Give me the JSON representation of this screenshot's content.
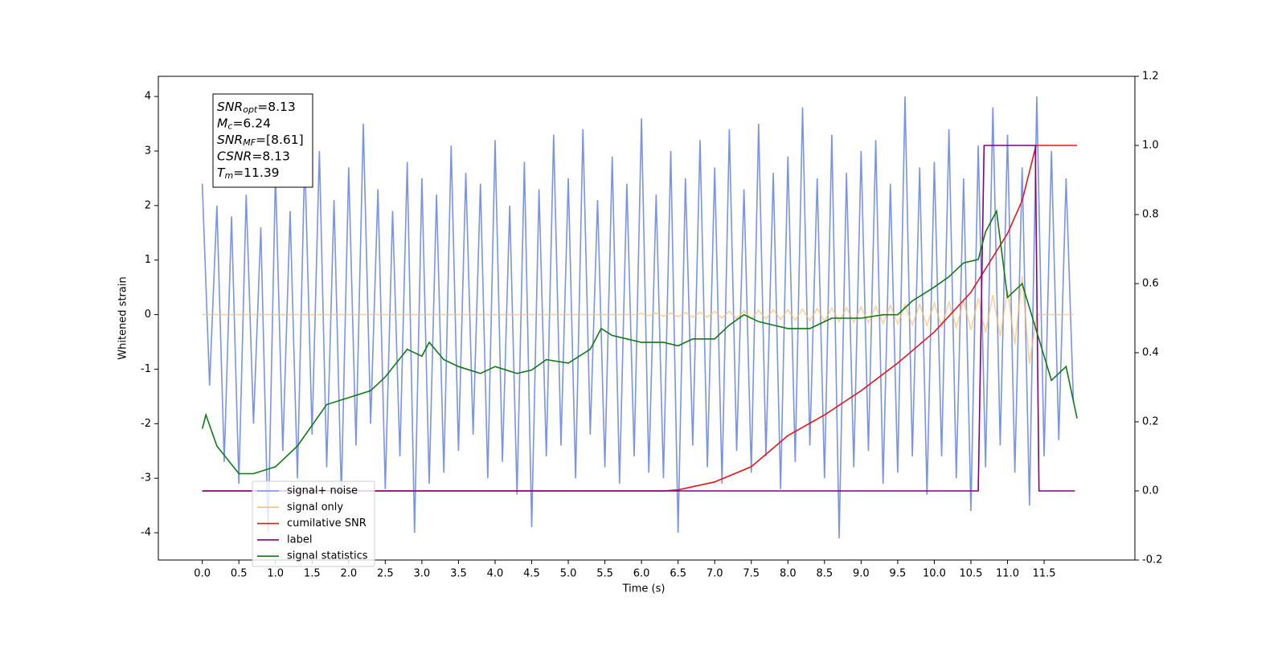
{
  "chart_data": {
    "type": "line",
    "xlabel": "Time (s)",
    "ylabel": "Whitened strain",
    "xlim": [
      -0.6,
      12.74
    ],
    "ylim": [
      -4.5,
      4.37
    ],
    "y2lim": [
      -0.2,
      1.2
    ],
    "xticks": [
      {
        "value": 0,
        "label": "0.0"
      },
      0.5,
      {
        "value": 1,
        "label": "1.0"
      },
      1.5,
      {
        "value": 2,
        "label": "2.0"
      },
      2.5,
      {
        "value": 3,
        "label": "3.0"
      },
      3.5,
      {
        "value": 4,
        "label": "4.0"
      },
      4.5,
      {
        "value": 5,
        "label": "5.0"
      },
      5.5,
      {
        "value": 6,
        "label": "6.0"
      },
      6.5,
      {
        "value": 7,
        "label": "7.0"
      },
      7.5,
      {
        "value": 8,
        "label": "8.0"
      },
      8.5,
      {
        "value": 9,
        "label": "9.0"
      },
      9.5,
      {
        "value": 10,
        "label": "10.0"
      },
      10.5,
      {
        "value": 11,
        "label": "11.0"
      },
      11.5
    ],
    "yticks": [
      -4,
      -3,
      -2,
      -1,
      0,
      1,
      2,
      3,
      4
    ],
    "y2ticks": [
      -0.2,
      {
        "value": 0,
        "label": "0.0"
      },
      0.2,
      0.4,
      0.6,
      0.8,
      {
        "value": 1,
        "label": "1.0"
      },
      1.2
    ],
    "annotations": [
      {
        "text": "SNR",
        "sub": "opt",
        "rest": "=8.13"
      },
      {
        "text": "M",
        "sub": "c",
        "rest": "=6.24"
      },
      {
        "text": "SNR",
        "sub": "MF",
        "rest": "=[8.61]"
      },
      {
        "text": "CSNR",
        "rest": "=8.13"
      },
      {
        "text": "T",
        "sub": "m",
        "rest": "=11.39"
      }
    ],
    "x": [
      0,
      0.1,
      0.2,
      0.3,
      0.4,
      0.5,
      0.6,
      0.7,
      0.8,
      0.9,
      1,
      1.1,
      1.2,
      1.3,
      1.4,
      1.5,
      1.6,
      1.7,
      1.8,
      1.9,
      2,
      2.1,
      2.2,
      2.3,
      2.4,
      2.5,
      2.6,
      2.7,
      2.8,
      2.9,
      3,
      3.1,
      3.2,
      3.3,
      3.4,
      3.5,
      3.6,
      3.7,
      3.8,
      3.9,
      4,
      4.1,
      4.2,
      4.3,
      4.4,
      4.5,
      4.6,
      4.7,
      4.8,
      4.9,
      5,
      5.1,
      5.2,
      5.3,
      5.4,
      5.5,
      5.6,
      5.7,
      5.8,
      5.9,
      6,
      6.1,
      6.2,
      6.3,
      6.4,
      6.5,
      6.6,
      6.7,
      6.8,
      6.9,
      7,
      7.1,
      7.2,
      7.3,
      7.4,
      7.5,
      7.6,
      7.7,
      7.8,
      7.9,
      8,
      8.1,
      8.2,
      8.3,
      8.4,
      8.5,
      8.6,
      8.7,
      8.8,
      8.9,
      9,
      9.1,
      9.2,
      9.3,
      9.4,
      9.5,
      9.6,
      9.7,
      9.8,
      9.9,
      10,
      10.1,
      10.2,
      10.3,
      10.4,
      10.5,
      10.6,
      10.7,
      10.8,
      10.9,
      11,
      11.1,
      11.2,
      11.3,
      11.4,
      11.5,
      11.6,
      11.7,
      11.8,
      11.9
    ],
    "series": [
      {
        "name": "signal+ noise",
        "color": "#7893e8",
        "values": [
          2.4,
          -1.3,
          2.0,
          -2.7,
          1.8,
          -3.1,
          2.2,
          -2.0,
          1.6,
          -4.0,
          2.6,
          -2.5,
          1.9,
          -3.0,
          2.9,
          -2.2,
          3.0,
          -2.8,
          2.1,
          -3.3,
          2.7,
          -2.4,
          3.5,
          -2.0,
          2.3,
          -3.2,
          1.9,
          -2.6,
          2.8,
          -4.0,
          2.5,
          -3.1,
          2.2,
          -2.9,
          3.1,
          -2.5,
          2.6,
          -2.2,
          2.4,
          -3.0,
          3.2,
          -2.7,
          2.0,
          -3.3,
          2.8,
          -3.9,
          2.3,
          -2.6,
          3.3,
          -2.4,
          2.5,
          -3.0,
          3.4,
          -2.2,
          2.1,
          -2.8,
          2.9,
          -3.1,
          2.4,
          -2.6,
          3.6,
          -2.9,
          2.2,
          -3.0,
          3.0,
          -4.0,
          2.5,
          -2.4,
          3.2,
          -2.8,
          2.7,
          -3.1,
          3.4,
          -2.5,
          2.3,
          -2.9,
          3.5,
          -2.6,
          2.6,
          -3.2,
          2.9,
          -2.7,
          3.8,
          -2.4,
          2.5,
          -3.0,
          3.3,
          -4.1,
          2.6,
          -2.8,
          3.0,
          -2.5,
          3.2,
          -3.1,
          2.4,
          -2.9,
          4.0,
          -2.6,
          2.7,
          -3.3,
          2.8,
          -2.6,
          3.4,
          -3.0,
          2.5,
          -3.6,
          3.1,
          -2.8,
          3.8,
          -2.4,
          3.3,
          -2.9,
          2.7,
          -3.5,
          4.0,
          -2.6,
          3.0,
          -2.3,
          2.5,
          -1.6
        ]
      },
      {
        "name": "signal only",
        "color": "#ffbf60",
        "values": [
          0,
          0,
          0,
          0,
          0,
          0,
          0,
          0,
          0,
          0,
          0,
          0,
          0,
          0,
          0,
          0,
          0,
          0,
          0,
          0,
          0,
          0,
          0,
          0,
          0,
          0,
          0,
          0,
          0,
          0,
          0,
          0,
          0,
          0,
          0,
          0,
          0,
          0,
          0,
          0,
          0,
          0,
          0,
          0,
          0,
          0,
          0,
          0,
          0,
          0,
          0,
          0,
          0,
          0,
          0,
          0,
          0,
          0,
          0,
          0,
          0.02,
          -0.02,
          0.03,
          -0.03,
          0.03,
          -0.04,
          0.04,
          -0.05,
          0.05,
          -0.05,
          0.06,
          -0.06,
          0.06,
          -0.07,
          0.07,
          -0.08,
          0.08,
          -0.08,
          0.09,
          -0.09,
          0.09,
          -0.1,
          0.1,
          -0.11,
          0.11,
          -0.12,
          0.12,
          -0.13,
          0.13,
          -0.14,
          0.14,
          -0.15,
          0.15,
          -0.16,
          0.17,
          -0.17,
          0.18,
          -0.19,
          0.19,
          -0.2,
          0.21,
          -0.22,
          0.23,
          -0.24,
          0.26,
          -0.28,
          0.3,
          -0.33,
          0.36,
          -0.4,
          0.45,
          -0.55,
          0.7,
          -0.9,
          0,
          0,
          0,
          0,
          0,
          0
        ]
      },
      {
        "name": "cumilative SNR",
        "color": "#e8151b",
        "axis": "y2",
        "x": [
          0,
          6.3,
          6.5,
          7,
          7.5,
          8,
          8.5,
          9,
          9.5,
          10,
          10.5,
          11,
          11.2,
          11.39,
          11.95
        ],
        "values": [
          0,
          0,
          0.003,
          0.026,
          0.07,
          0.16,
          0.22,
          0.29,
          0.37,
          0.46,
          0.575,
          0.745,
          0.84,
          1,
          1
        ]
      },
      {
        "name": "label",
        "color": "#800080",
        "axis": "y2",
        "x": [
          0,
          10.6,
          10.68,
          11.38,
          11.43,
          11.92
        ],
        "values": [
          0,
          0,
          1,
          1,
          0,
          0
        ]
      },
      {
        "name": "signal statistics",
        "color": "#117a11",
        "axis": "y2",
        "x": [
          0,
          0.05,
          0.2,
          0.5,
          0.7,
          1,
          1.3,
          1.5,
          1.7,
          2,
          2.3,
          2.5,
          2.8,
          3,
          3.1,
          3.3,
          3.5,
          3.8,
          4,
          4.3,
          4.5,
          4.7,
          5,
          5.3,
          5.45,
          5.6,
          5.8,
          6,
          6.3,
          6.5,
          6.7,
          7,
          7.2,
          7.4,
          7.6,
          7.8,
          8,
          8.3,
          8.6,
          9,
          9.3,
          9.5,
          9.7,
          10,
          10.2,
          10.4,
          10.6,
          10.7,
          10.85,
          11,
          11.2,
          11.4,
          11.6,
          11.8,
          11.95
        ],
        "values": [
          0.18,
          0.22,
          0.13,
          0.05,
          0.05,
          0.07,
          0.13,
          0.19,
          0.25,
          0.27,
          0.29,
          0.33,
          0.41,
          0.39,
          0.43,
          0.38,
          0.36,
          0.34,
          0.36,
          0.34,
          0.35,
          0.38,
          0.37,
          0.41,
          0.47,
          0.45,
          0.44,
          0.43,
          0.43,
          0.42,
          0.44,
          0.44,
          0.48,
          0.51,
          0.49,
          0.48,
          0.47,
          0.47,
          0.5,
          0.5,
          0.51,
          0.51,
          0.55,
          0.59,
          0.62,
          0.66,
          0.67,
          0.75,
          0.81,
          0.56,
          0.6,
          0.46,
          0.32,
          0.36,
          0.21
        ]
      }
    ]
  }
}
